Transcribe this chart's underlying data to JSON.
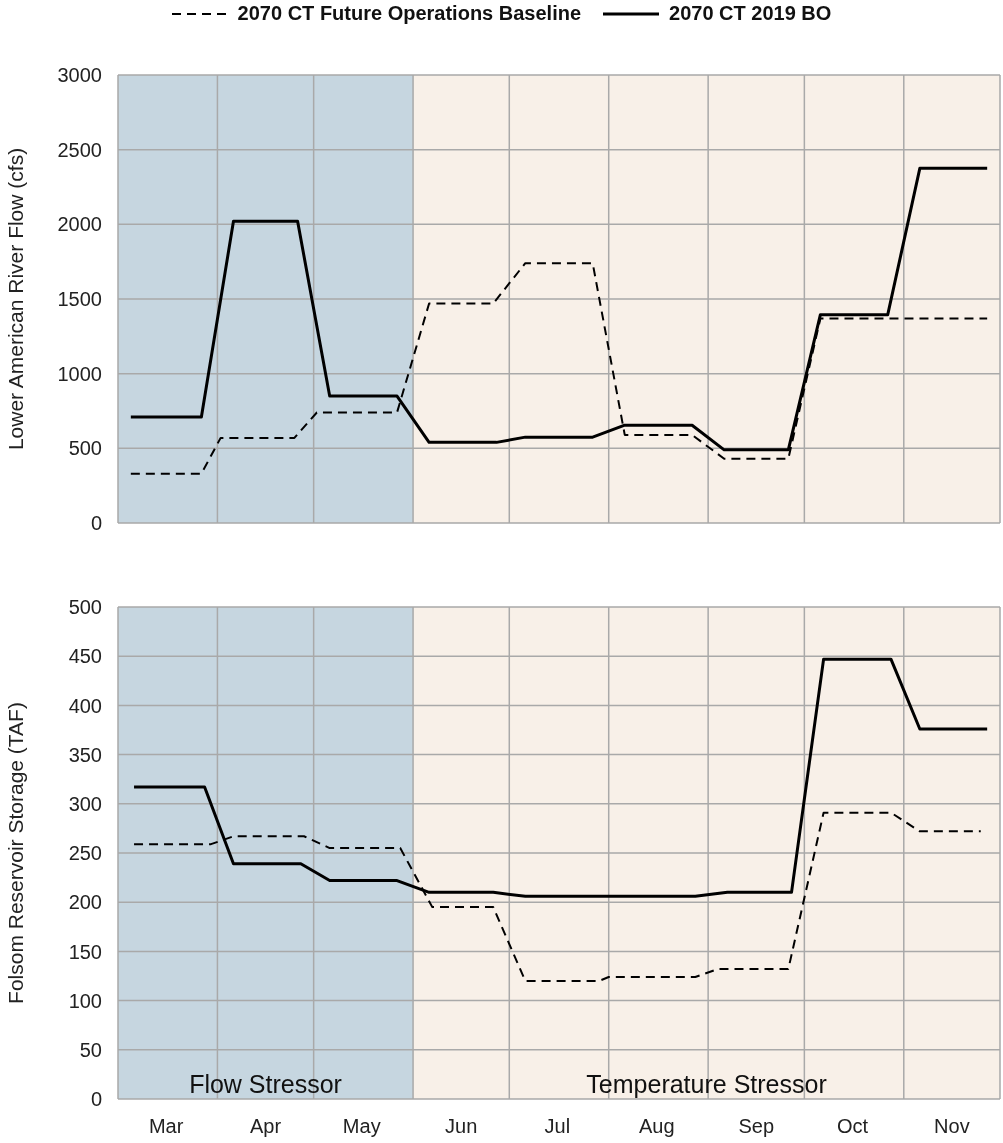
{
  "chart_data": [
    {
      "type": "line",
      "ylabel": "Lower American River Flow (cfs)",
      "xlim": [
        "--03-01",
        "--12-01"
      ],
      "ylim": [
        0,
        3000
      ],
      "yticks": [
        0,
        500,
        1000,
        1500,
        2000,
        2500,
        3000
      ],
      "xticks": [
        {
          "value": "--03-01",
          "label": null
        },
        {
          "value": "--04-01",
          "label": null
        },
        {
          "value": "--05-01",
          "label": null
        },
        {
          "value": "--06-01",
          "label": null
        },
        {
          "value": "--07-01",
          "label": null
        },
        {
          "value": "--08-01",
          "label": null
        },
        {
          "value": "--09-01",
          "label": null
        },
        {
          "value": "--10-01",
          "label": null
        },
        {
          "value": "--11-01",
          "label": null
        },
        {
          "value": "--12-01",
          "label": null
        },
        {
          "value": "--03-16",
          "label": "Mar"
        },
        {
          "value": "--04-16",
          "label": "Apr"
        },
        {
          "value": "--05-16",
          "label": "May"
        },
        {
          "value": "--06-16",
          "label": "Jun"
        },
        {
          "value": "--07-16",
          "label": "Jul"
        },
        {
          "value": "--08-16",
          "label": "Aug"
        },
        {
          "value": "--09-16",
          "label": "Sep"
        },
        {
          "value": "--10-16",
          "label": "Oct"
        },
        {
          "value": "--11-16",
          "label": "Nov"
        }
      ],
      "tick_labels": "y",
      "grid": true,
      "legend": "top",
      "bands": [
        {
          "axis": "x",
          "from": "--03-01",
          "to": "--06-01",
          "color": "#c6d6e0"
        },
        {
          "axis": "x",
          "from": "--06-01",
          "to": "--12-01",
          "color": "#f8f0e8"
        }
      ],
      "series": [
        {
          "name": "2070 CT Future Operations Baseline",
          "color": "#000000",
          "line_style": "dashed",
          "x": [
            "--03-05",
            "--03-27",
            "--04-02",
            "--04-25",
            "--05-02",
            "--05-27",
            "--06-06",
            "--06-26",
            "--07-06",
            "--07-27",
            "--08-06",
            "--08-27",
            "--09-06",
            "--09-26",
            "--10-06",
            "--10-27",
            "--11-27"
          ],
          "values": [
            330,
            330,
            570,
            570,
            740,
            740,
            1470,
            1470,
            1740,
            1740,
            590,
            590,
            430,
            430,
            1370,
            1370,
            1370
          ]
        },
        {
          "name": "2070 CT 2019 BO",
          "color": "#000000",
          "line_style": "solid",
          "x": [
            "--03-05",
            "--03-27",
            "--04-06",
            "--04-26",
            "--05-06",
            "--05-27",
            "--06-06",
            "--06-27",
            "--07-06",
            "--07-27",
            "--08-06",
            "--08-27",
            "--09-06",
            "--09-26",
            "--10-06",
            "--10-27",
            "--11-06",
            "--11-27"
          ],
          "values": [
            710,
            710,
            2020,
            2020,
            850,
            850,
            540,
            540,
            575,
            575,
            655,
            655,
            490,
            490,
            1395,
            1395,
            2375,
            2375
          ]
        }
      ]
    },
    {
      "type": "line",
      "ylabel": "Folsom Reservoir Storage (TAF)",
      "xlim": [
        "--03-01",
        "--12-01"
      ],
      "ylim": [
        0,
        500
      ],
      "yticks": [
        0,
        50,
        100,
        150,
        200,
        250,
        300,
        350,
        400,
        450,
        500
      ],
      "xticks": [
        {
          "value": "--03-01",
          "label": null
        },
        {
          "value": "--04-01",
          "label": null
        },
        {
          "value": "--05-01",
          "label": null
        },
        {
          "value": "--06-01",
          "label": null
        },
        {
          "value": "--07-01",
          "label": null
        },
        {
          "value": "--08-01",
          "label": null
        },
        {
          "value": "--09-01",
          "label": null
        },
        {
          "value": "--10-01",
          "label": null
        },
        {
          "value": "--11-01",
          "label": null
        },
        {
          "value": "--12-01",
          "label": null
        },
        {
          "value": "--03-16",
          "label": "Mar"
        },
        {
          "value": "--04-16",
          "label": "Apr"
        },
        {
          "value": "--05-16",
          "label": "May"
        },
        {
          "value": "--06-16",
          "label": "Jun"
        },
        {
          "value": "--07-16",
          "label": "Jul"
        },
        {
          "value": "--08-16",
          "label": "Aug"
        },
        {
          "value": "--09-16",
          "label": "Sep"
        },
        {
          "value": "--10-16",
          "label": "Oct"
        },
        {
          "value": "--11-16",
          "label": "Nov"
        }
      ],
      "grid": true,
      "bands": [
        {
          "axis": "x",
          "from": "--03-01",
          "to": "--06-01",
          "color": "#c6d6e0",
          "label": "Flow  Stressor"
        },
        {
          "axis": "x",
          "from": "--06-01",
          "to": "--12-01",
          "color": "#f8f0e8",
          "label": "Temperature  Stressor"
        }
      ],
      "series": [
        {
          "color": "#000000",
          "line_style": "dashed",
          "x": [
            "--03-06",
            "--03-30",
            "--04-06",
            "--04-28",
            "--05-06",
            "--05-28",
            "--06-07",
            "--06-26",
            "--07-06",
            "--07-29",
            "--08-01",
            "--08-28",
            "--09-04",
            "--09-26",
            "--10-07",
            "--10-28",
            "--11-06",
            "--11-25"
          ],
          "values": [
            259,
            259,
            267,
            267,
            255,
            255,
            195,
            195,
            120,
            120,
            124,
            124,
            132,
            132,
            291,
            291,
            272,
            272
          ]
        },
        {
          "color": "#000000",
          "line_style": "solid",
          "x": [
            "--03-06",
            "--03-28",
            "--04-06",
            "--04-27",
            "--05-06",
            "--05-27",
            "--06-06",
            "--06-26",
            "--07-06",
            "--08-28",
            "--09-07",
            "--09-27",
            "--10-07",
            "--10-28",
            "--11-06",
            "--11-27"
          ],
          "values": [
            317,
            317,
            239,
            239,
            222,
            222,
            210,
            210,
            206,
            206,
            210,
            210,
            447,
            447,
            376,
            376
          ]
        }
      ]
    }
  ]
}
